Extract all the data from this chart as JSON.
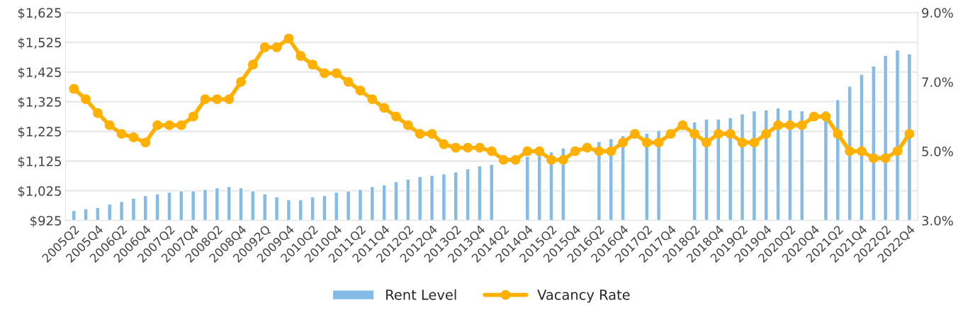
{
  "chart_data": {
    "type": "bar",
    "categories": [
      "2005Q2",
      null,
      "2005Q4",
      null,
      "2006Q2",
      null,
      "2006Q4",
      null,
      "2007Q2",
      null,
      "2007Q4",
      null,
      "2008Q2",
      null,
      "2008Q4",
      null,
      "20092Q",
      null,
      "2009Q4",
      null,
      "2010Q2",
      null,
      "2010Q4",
      null,
      "2011Q2",
      null,
      "2011Q4",
      null,
      "2012Q2",
      null,
      "2012Q4",
      null,
      "2013Q2",
      null,
      "2013Q4",
      null,
      "2014Q2",
      null,
      "2014Q4",
      null,
      "2015Q2",
      null,
      "2015Q4",
      null,
      "2016Q2",
      null,
      "2016Q4",
      null,
      "2017Q2",
      null,
      "2017Q4",
      null,
      "2018Q2",
      null,
      "2018Q4",
      null,
      "2019Q2",
      null,
      "2019Q4",
      null,
      "2020Q2",
      null,
      "2020Q4",
      null,
      "2021Q2",
      null,
      "2021Q4",
      null,
      "2022Q2",
      null,
      "2022Q4"
    ],
    "series": [
      {
        "name": "Rent Level",
        "color": "#85bce6",
        "values": [
          959,
          965,
          969,
          980,
          989,
          1000,
          1009,
          1015,
          1020,
          1025,
          1025,
          1030,
          1035,
          1039,
          1035,
          1025,
          1015,
          1005,
          995,
          995,
          1005,
          1009,
          1020,
          1025,
          1030,
          1039,
          1045,
          1056,
          1064,
          1073,
          1077,
          1082,
          1089,
          1099,
          1109,
          1114,
          null,
          null,
          1141,
          1147,
          1156,
          1169,
          null,
          null,
          1191,
          1201,
          1211,
          null,
          1219,
          1229,
          null,
          null,
          1257,
          1266,
          1266,
          1271,
          1284,
          1294,
          1297,
          1304,
          1297,
          1294,
          null,
          1294,
          1332,
          1377,
          1417,
          1445,
          1481,
          1499,
          1486
        ]
      },
      {
        "name": "Vacancy Rate",
        "type": "line",
        "axis": "y2",
        "color": "#ffb000",
        "marker": "circle",
        "values": [
          6.8,
          6.5,
          6.1,
          5.75,
          5.5,
          5.4,
          5.25,
          5.75,
          5.75,
          5.75,
          6.0,
          6.5,
          6.5,
          6.5,
          7.0,
          7.5,
          8.0,
          8.0,
          8.25,
          7.75,
          7.5,
          7.25,
          7.25,
          7.0,
          6.75,
          6.5,
          6.25,
          6.0,
          5.75,
          5.5,
          5.5,
          5.2,
          5.1,
          5.1,
          5.1,
          5.0,
          4.75,
          4.75,
          5.0,
          5.0,
          4.75,
          4.75,
          5.0,
          5.1,
          5.0,
          5.0,
          5.25,
          5.5,
          5.25,
          5.25,
          5.5,
          5.75,
          5.5,
          5.25,
          5.5,
          5.5,
          5.25,
          5.25,
          5.5,
          5.75,
          5.75,
          5.75,
          6.0,
          6.0,
          5.5,
          5.0,
          5.0,
          4.8,
          4.8,
          5.0,
          5.5
        ]
      }
    ],
    "ylim": [
      925,
      1625
    ],
    "yticks": [
      {
        "value": 925,
        "label": "$925"
      },
      {
        "value": 1025,
        "label": "$1,025"
      },
      {
        "value": 1125,
        "label": "$1,125"
      },
      {
        "value": 1225,
        "label": "$1,225"
      },
      {
        "value": 1325,
        "label": "$1,325"
      },
      {
        "value": 1425,
        "label": "$1,425"
      },
      {
        "value": 1525,
        "label": "$1,525"
      },
      {
        "value": 1625,
        "label": "$1,625"
      }
    ],
    "y2lim": [
      3,
      9
    ],
    "y2ticks": [
      {
        "value": 3,
        "label": "3.0%"
      },
      {
        "value": 5,
        "label": "5.0%"
      },
      {
        "value": 7,
        "label": "7.0%"
      },
      {
        "value": 9,
        "label": "9.0%"
      }
    ],
    "grid": "y",
    "legend": "bottom"
  }
}
